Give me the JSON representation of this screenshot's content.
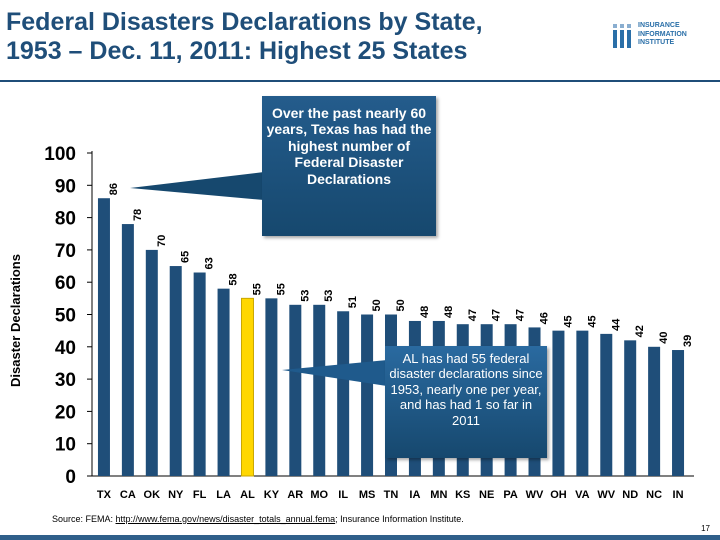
{
  "slide": {
    "title_line1": "Federal Disasters Declarations by State,",
    "title_line2": "1953 – Dec. 11, 2011: Highest 25 States",
    "logo_lines": [
      "INSURANCE",
      "INFORMATION",
      "INSTITUTE"
    ],
    "callout_texas": "Over the past nearly 60 years, Texas has had the highest number of Federal Disaster Declarations",
    "callout_alabama": "AL has had 55 federal disaster declarations since 1953, nearly one per year, and has had 1 so far in 2011",
    "source_prefix": "Source:  FEMA: ",
    "source_link": "http://www.fema.gov/news/disaster_totals_annual.fema",
    "source_suffix": "; Insurance Information Institute.",
    "page_number": "17"
  },
  "chart_data": {
    "type": "bar",
    "ylabel": "Disaster Declarations",
    "xlabel": "",
    "ylim": [
      0,
      100
    ],
    "yticks": [
      0,
      10,
      20,
      30,
      40,
      50,
      60,
      70,
      80,
      90,
      100
    ],
    "categories": [
      "TX",
      "CA",
      "OK",
      "NY",
      "FL",
      "LA",
      "AL",
      "KY",
      "AR",
      "MO",
      "IL",
      "MS",
      "TN",
      "IA",
      "MN",
      "KS",
      "NE",
      "PA",
      "WV",
      "OH",
      "VA",
      "WV",
      "ND",
      "NC",
      "IN"
    ],
    "values": [
      86,
      78,
      70,
      65,
      63,
      58,
      55,
      55,
      53,
      53,
      51,
      50,
      50,
      48,
      48,
      47,
      47,
      47,
      46,
      45,
      45,
      44,
      42,
      40,
      39
    ],
    "highlight_index": 6,
    "colors": {
      "bar": "#1f4e79",
      "bar_highlight": "#ffd700",
      "axis_text": "#000000"
    }
  }
}
